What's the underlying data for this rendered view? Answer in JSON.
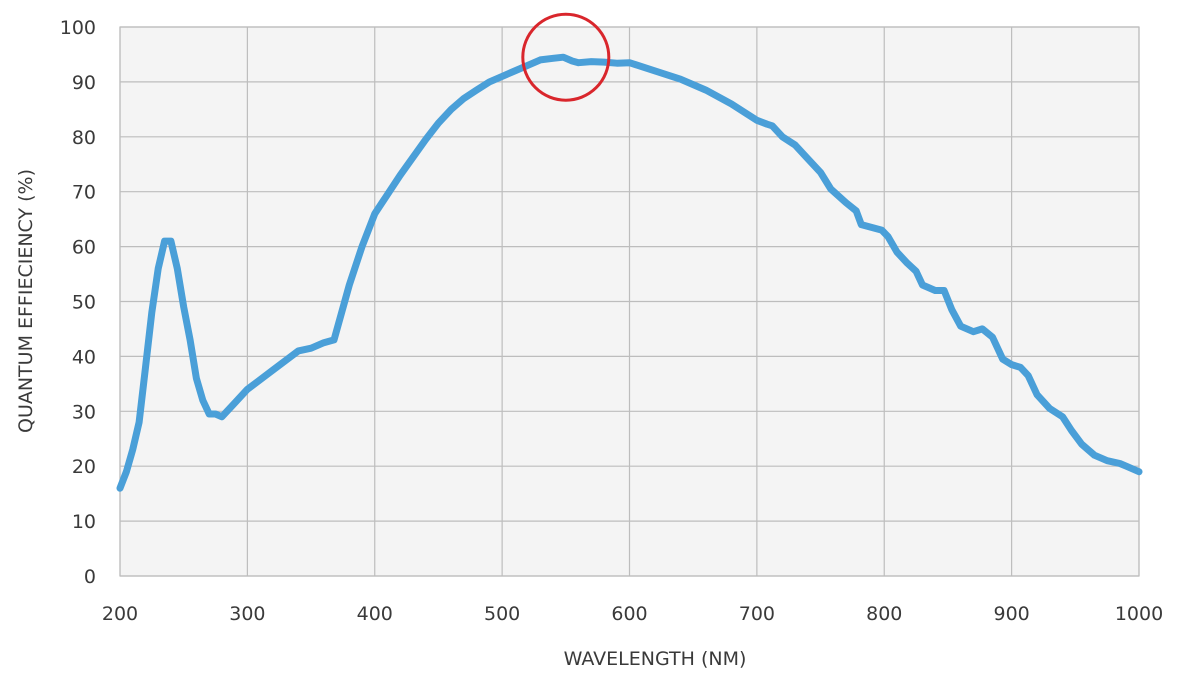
{
  "chart_data": {
    "type": "line",
    "title": "",
    "xlabel": "WAVELENGTH (NM)",
    "ylabel": "QUANTUM EFFIECIENCY (%)",
    "xlim": [
      200,
      1000
    ],
    "ylim": [
      0,
      100
    ],
    "x_ticks": [
      200,
      300,
      400,
      500,
      600,
      700,
      800,
      900,
      1000
    ],
    "y_ticks": [
      0,
      10,
      20,
      30,
      40,
      50,
      60,
      70,
      80,
      90,
      100
    ],
    "grid": true,
    "line_color": "#4a9fd8",
    "annotation_color": "#d9262c",
    "annotation": {
      "shape": "circle",
      "center_x": 550,
      "center_y": 94.5
    },
    "series": [
      {
        "x": [
          200,
          205,
          210,
          215,
          220,
          225,
          230,
          235,
          240,
          245,
          250,
          255,
          260,
          265,
          270,
          275,
          280,
          290,
          300,
          320,
          340,
          350,
          360,
          368,
          380,
          390,
          400,
          420,
          440,
          450,
          460,
          470,
          480,
          490,
          500,
          510,
          520,
          530,
          540,
          548,
          555,
          560,
          570,
          580,
          590,
          600,
          620,
          640,
          660,
          680,
          700,
          708,
          712,
          720,
          730,
          740,
          750,
          758,
          770,
          778,
          782,
          790,
          798,
          803,
          810,
          818,
          825,
          830,
          840,
          847,
          853,
          860,
          870,
          877,
          885,
          893,
          900,
          907,
          913,
          920,
          930,
          940,
          947,
          955,
          965,
          975,
          985,
          990,
          1000
        ],
        "y": [
          16,
          19,
          23,
          28,
          38,
          48,
          56,
          61,
          61,
          56,
          49,
          43,
          36,
          32,
          29.5,
          29.5,
          29,
          31.5,
          34,
          37.5,
          41,
          41.5,
          42.5,
          43,
          53,
          60,
          66,
          73,
          79.5,
          82.5,
          85,
          87,
          88.5,
          90,
          91,
          92,
          93,
          94,
          94.3,
          94.5,
          93.8,
          93.5,
          93.7,
          93.6,
          93.4,
          93.5,
          92,
          90.5,
          88.5,
          86,
          83,
          82.3,
          82,
          80,
          78.5,
          76,
          73.5,
          70.5,
          68,
          66.5,
          64,
          63.5,
          63,
          61.8,
          59,
          57,
          55.5,
          53,
          52,
          52,
          48.5,
          45.5,
          44.5,
          45,
          43.5,
          39.5,
          38.5,
          38,
          36.5,
          33,
          30.5,
          29,
          26.5,
          24,
          22,
          21,
          20.5,
          20,
          19
        ]
      }
    ]
  }
}
